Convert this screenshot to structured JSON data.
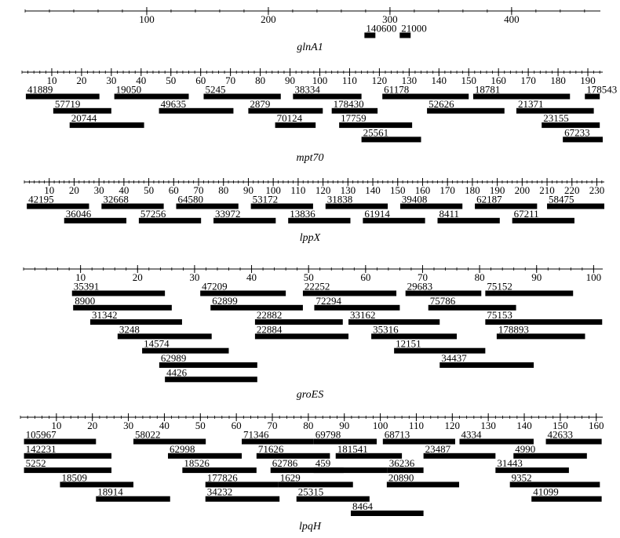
{
  "chart_data": [
    {
      "type": "interval",
      "title": "glnA1",
      "xlim": [
        0,
        473
      ],
      "xticks": [
        100,
        200,
        300,
        400
      ],
      "rows": [
        [
          {
            "label": "140600",
            "start": 279,
            "end": 288
          },
          {
            "label": "21000",
            "start": 308,
            "end": 317
          }
        ]
      ]
    },
    {
      "type": "interval",
      "title": "mpt70",
      "xlim": [
        0,
        195
      ],
      "xticks": [
        10,
        20,
        30,
        40,
        50,
        60,
        70,
        80,
        90,
        100,
        110,
        120,
        130,
        140,
        150,
        160,
        170,
        180,
        190
      ],
      "rows": [
        [
          {
            "label": "41889",
            "start": 1.3,
            "end": 26
          },
          {
            "label": "19050",
            "start": 31,
            "end": 56
          },
          {
            "label": "5245",
            "start": 61,
            "end": 86.9
          },
          {
            "label": "38334",
            "start": 91,
            "end": 114
          },
          {
            "label": "61178",
            "start": 121,
            "end": 150
          },
          {
            "label": "18781",
            "start": 151.5,
            "end": 184
          },
          {
            "label": "178543",
            "start": 189,
            "end": 194
          }
        ],
        [
          {
            "label": "57719",
            "start": 10.5,
            "end": 30
          },
          {
            "label": "49635",
            "start": 46,
            "end": 71
          },
          {
            "label": "2879",
            "start": 76,
            "end": 101
          },
          {
            "label": "178430",
            "start": 104,
            "end": 119.4
          },
          {
            "label": "52626",
            "start": 136,
            "end": 162
          },
          {
            "label": "21371",
            "start": 166,
            "end": 192
          }
        ],
        [
          {
            "label": "20744",
            "start": 16,
            "end": 41
          },
          {
            "label": "70124",
            "start": 85,
            "end": 98.6
          },
          {
            "label": "17759",
            "start": 106.5,
            "end": 131
          },
          {
            "label": "23155",
            "start": 174.5,
            "end": 194
          }
        ],
        [
          {
            "label": "25561",
            "start": 114,
            "end": 134
          },
          {
            "label": "67233",
            "start": 181.6,
            "end": 195
          }
        ]
      ]
    },
    {
      "type": "interval",
      "title": "lppX",
      "xlim": [
        0,
        233
      ],
      "xticks": [
        10,
        20,
        30,
        40,
        50,
        60,
        70,
        80,
        90,
        100,
        110,
        120,
        130,
        140,
        150,
        160,
        170,
        180,
        190,
        200,
        210,
        220,
        230
      ],
      "rows": [
        [
          {
            "label": "42195",
            "start": 1,
            "end": 26
          },
          {
            "label": "32668",
            "start": 31,
            "end": 56
          },
          {
            "label": "64580",
            "start": 61,
            "end": 86
          },
          {
            "label": "53172",
            "start": 91,
            "end": 116
          },
          {
            "label": "31838",
            "start": 121,
            "end": 146
          },
          {
            "label": "39408",
            "start": 151,
            "end": 176
          },
          {
            "label": "62187",
            "start": 181,
            "end": 206
          },
          {
            "label": "58475",
            "start": 210,
            "end": 233
          }
        ],
        [
          {
            "label": "36046",
            "start": 16,
            "end": 41
          },
          {
            "label": "57256",
            "start": 46,
            "end": 71
          },
          {
            "label": "33972",
            "start": 76,
            "end": 101
          },
          {
            "label": "13836",
            "start": 106,
            "end": 131
          },
          {
            "label": "61914",
            "start": 136,
            "end": 161
          },
          {
            "label": "8411",
            "start": 166,
            "end": 191
          },
          {
            "label": "67211",
            "start": 196,
            "end": 221
          }
        ]
      ]
    },
    {
      "type": "interval",
      "title": "groES",
      "xlim": [
        0,
        101.6
      ],
      "xticks": [
        10,
        20,
        30,
        40,
        50,
        60,
        70,
        80,
        90,
        100
      ],
      "rows": [
        [
          {
            "label": "35391",
            "start": 8.5,
            "end": 24.8
          },
          {
            "label": "47209",
            "start": 31,
            "end": 46
          },
          {
            "label": "22252",
            "start": 49,
            "end": 65.4
          },
          {
            "label": "29683",
            "start": 67,
            "end": 80.3
          },
          {
            "label": "75152",
            "start": 81,
            "end": 96.4
          }
        ],
        [
          {
            "label": "8900",
            "start": 8.7,
            "end": 26
          },
          {
            "label": "62899",
            "start": 32.8,
            "end": 49
          },
          {
            "label": "72294",
            "start": 51,
            "end": 66
          },
          {
            "label": "75786",
            "start": 71,
            "end": 86.4
          }
        ],
        [
          {
            "label": "31342",
            "start": 11.7,
            "end": 27.8
          },
          {
            "label": "22882",
            "start": 40.6,
            "end": 56
          },
          {
            "label": "33162",
            "start": 57,
            "end": 73
          },
          {
            "label": "75153",
            "start": 81,
            "end": 101.5
          }
        ],
        [
          {
            "label": "3248",
            "start": 16.5,
            "end": 33
          },
          {
            "label": "22884",
            "start": 40.6,
            "end": 57
          },
          {
            "label": "35316",
            "start": 61,
            "end": 76
          },
          {
            "label": "178893",
            "start": 83,
            "end": 98.5
          }
        ],
        [
          {
            "label": "14574",
            "start": 20.8,
            "end": 36
          },
          {
            "label": "12151",
            "start": 65,
            "end": 81
          }
        ],
        [
          {
            "label": "62989",
            "start": 23.8,
            "end": 41
          },
          {
            "label": "34437",
            "start": 73,
            "end": 89.5
          }
        ],
        [
          {
            "label": "4426",
            "start": 24.8,
            "end": 41
          }
        ]
      ]
    },
    {
      "type": "interval",
      "title": "lpqH",
      "xlim": [
        0,
        161.8
      ],
      "xticks": [
        10,
        20,
        30,
        40,
        50,
        60,
        70,
        80,
        90,
        100,
        110,
        120,
        130,
        140,
        150,
        160
      ],
      "rows": [
        [
          {
            "label": "105967",
            "start": 1,
            "end": 21
          },
          {
            "label": "58022",
            "start": 31.4,
            "end": 51.5
          },
          {
            "label": "71346",
            "start": 61.5,
            "end": 81.5
          },
          {
            "label": "69798",
            "start": 81.5,
            "end": 99
          },
          {
            "label": "68713",
            "start": 100.7,
            "end": 120.8
          },
          {
            "label": "4334",
            "start": 122,
            "end": 142.6
          },
          {
            "label": "42633",
            "start": 146,
            "end": 161.5
          }
        ],
        [
          {
            "label": "142231",
            "start": 1,
            "end": 25.3
          },
          {
            "label": "62998",
            "start": 41,
            "end": 61.5
          },
          {
            "label": "71626",
            "start": 65.6,
            "end": 86
          },
          {
            "label": "181541",
            "start": 87.6,
            "end": 106
          },
          {
            "label": "23487",
            "start": 112,
            "end": 132
          },
          {
            "label": "4990",
            "start": 137,
            "end": 157.4
          }
        ],
        [
          {
            "label": "5252",
            "start": 1,
            "end": 25.3
          },
          {
            "label": "18526",
            "start": 45,
            "end": 65.6
          },
          {
            "label": "62786",
            "start": 69.5,
            "end": 89.8
          },
          {
            "label": "459",
            "start": 81.5,
            "end": 102
          },
          {
            "label": "36236",
            "start": 102,
            "end": 112
          },
          {
            "label": "31443",
            "start": 132,
            "end": 152.4
          }
        ],
        [
          {
            "label": "18509",
            "start": 11,
            "end": 31.4
          },
          {
            "label": "177826",
            "start": 51.4,
            "end": 71.7
          },
          {
            "label": "1629",
            "start": 71.7,
            "end": 92.4
          },
          {
            "label": "20890",
            "start": 101.8,
            "end": 121.9
          },
          {
            "label": "9352",
            "start": 136,
            "end": 161
          }
        ],
        [
          {
            "label": "18914",
            "start": 21,
            "end": 41.6
          },
          {
            "label": "34232",
            "start": 51.4,
            "end": 72
          },
          {
            "label": "25315",
            "start": 76.7,
            "end": 97
          },
          {
            "label": "41099",
            "start": 142,
            "end": 161.5
          }
        ],
        [
          {
            "label": "8464",
            "start": 91.8,
            "end": 112
          }
        ]
      ]
    }
  ]
}
